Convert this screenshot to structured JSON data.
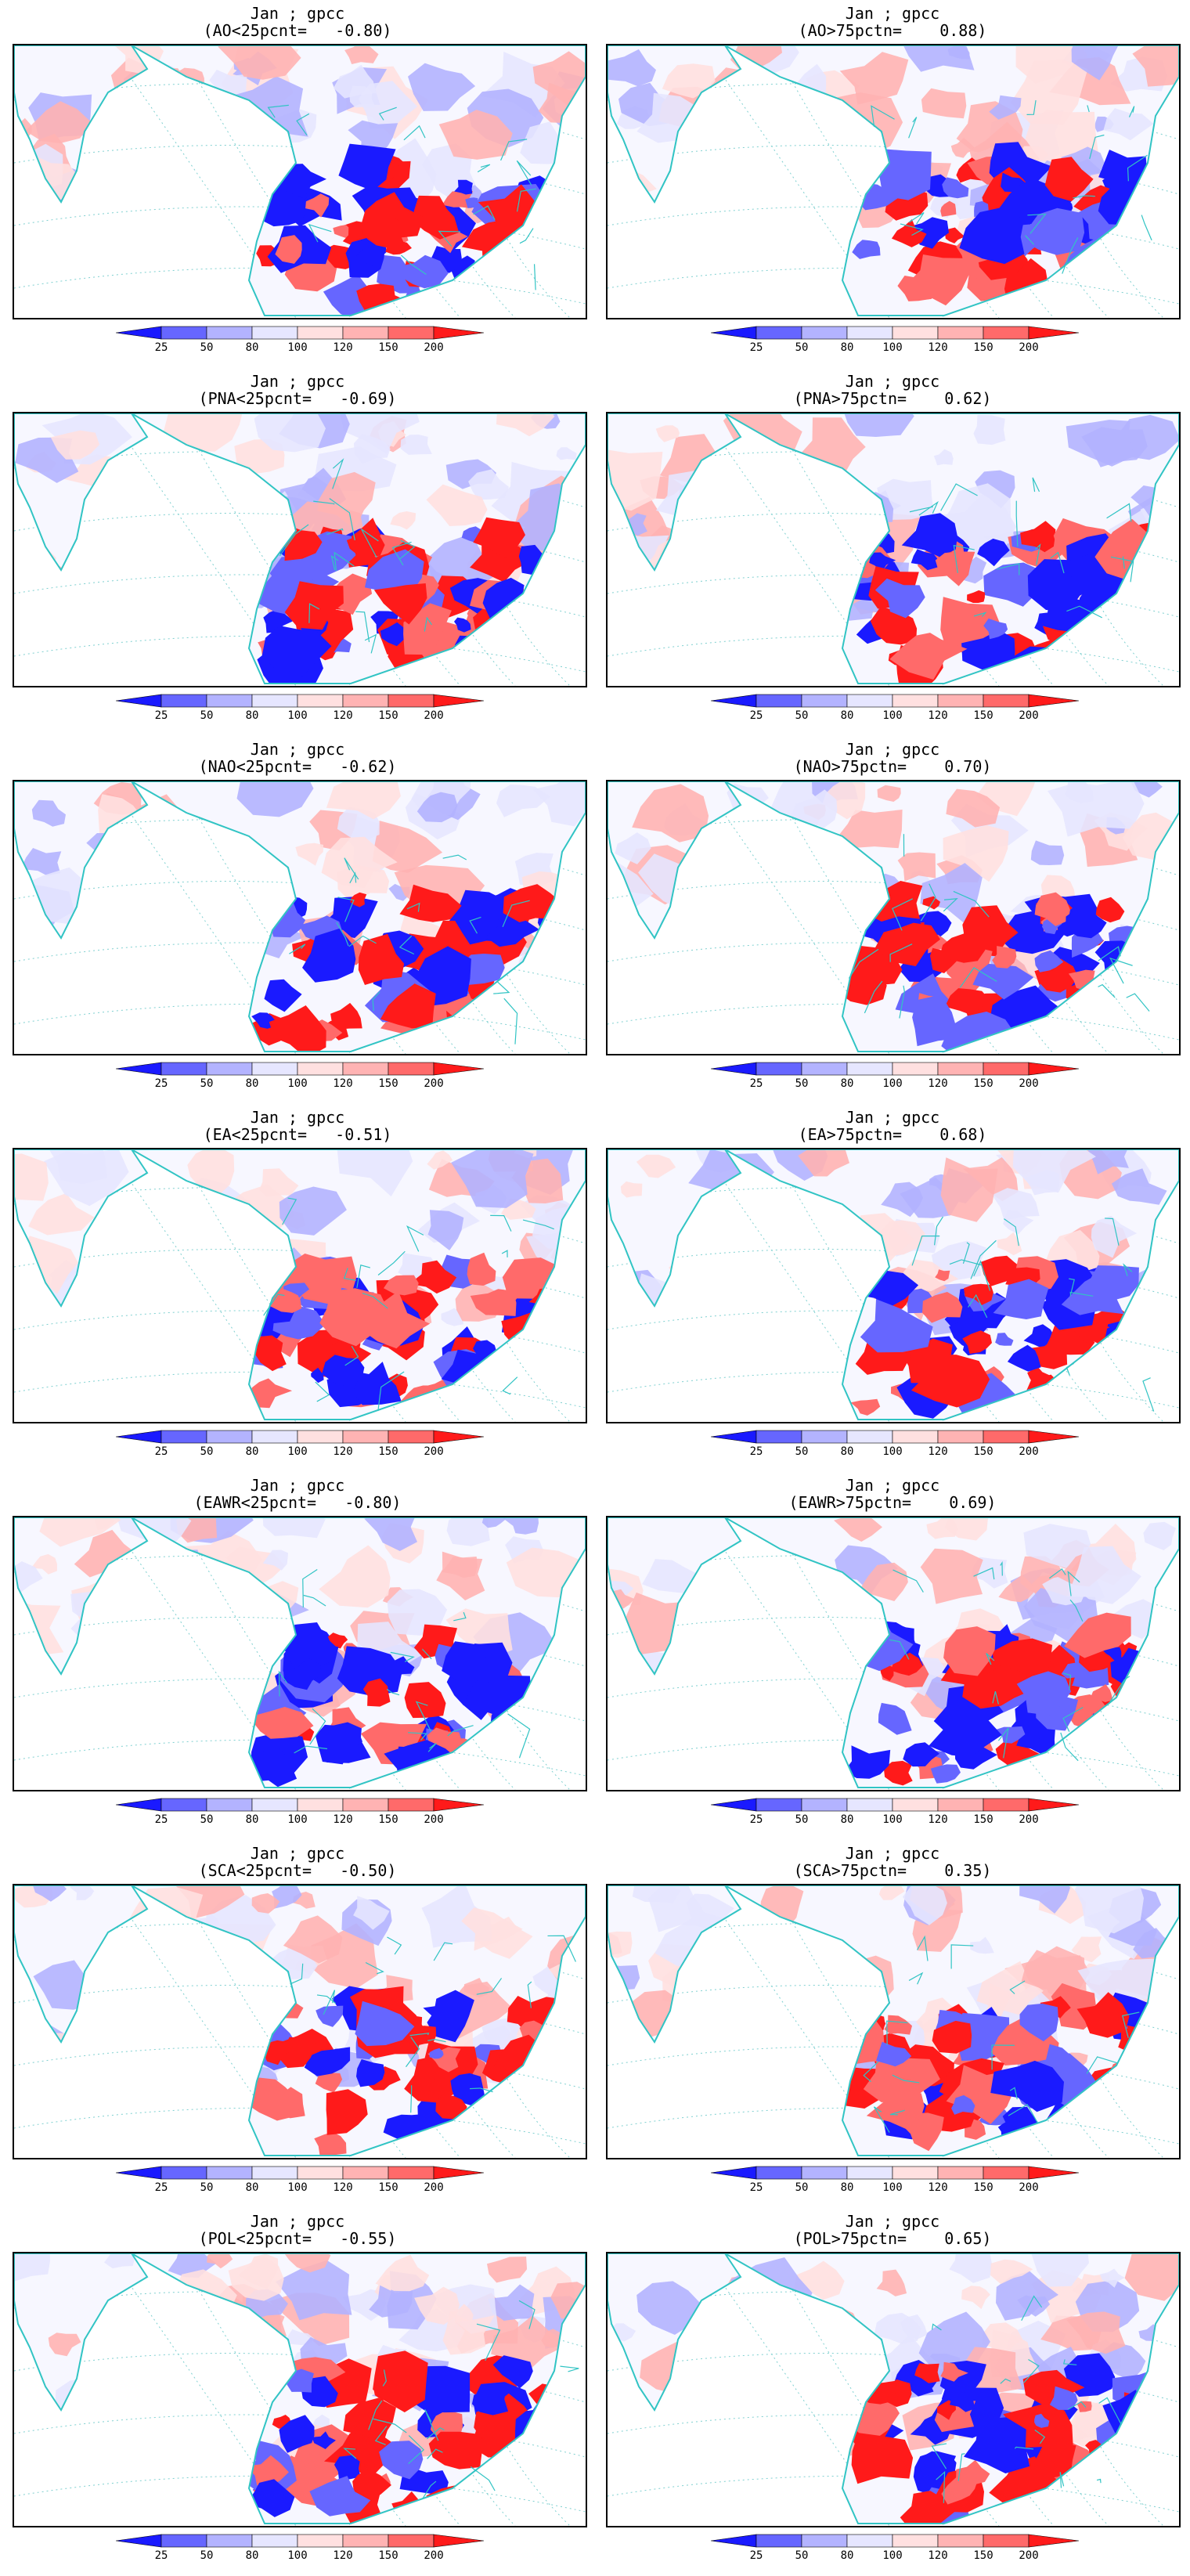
{
  "legend": {
    "colors": [
      "#1a1aff",
      "#6666ff",
      "#b3b3ff",
      "#e6e6ff",
      "#ffe0e0",
      "#ffb3b3",
      "#ff6a6a",
      "#ff1a1a"
    ],
    "levels": [
      "25",
      "50",
      "80",
      "100",
      "120",
      "150",
      "200"
    ]
  },
  "palette": {
    "coast": "#31c4c4",
    "grid": "#7fd0d0",
    "land_base": "#f7f7ff"
  },
  "panels": [
    {
      "title_line1": "Jan ; gpcc",
      "title_line2": "(AO<25pcnt=   -0.80)"
    },
    {
      "title_line1": "Jan ; gpcc",
      "title_line2": "(AO>75pctn=    0.88)"
    },
    {
      "title_line1": "Jan ; gpcc",
      "title_line2": "(PNA<25pcnt=   -0.69)"
    },
    {
      "title_line1": "Jan ; gpcc",
      "title_line2": "(PNA>75pctn=    0.62)"
    },
    {
      "title_line1": "Jan ; gpcc",
      "title_line2": "(NAO<25pcnt=   -0.62)"
    },
    {
      "title_line1": "Jan ; gpcc",
      "title_line2": "(NAO>75pctn=    0.70)"
    },
    {
      "title_line1": "Jan ; gpcc",
      "title_line2": "(EA<25pcnt=   -0.51)"
    },
    {
      "title_line1": "Jan ; gpcc",
      "title_line2": "(EA>75pctn=    0.68)"
    },
    {
      "title_line1": "Jan ; gpcc",
      "title_line2": "(EAWR<25pcnt=   -0.80)"
    },
    {
      "title_line1": "Jan ; gpcc",
      "title_line2": "(EAWR>75pctn=    0.69)"
    },
    {
      "title_line1": "Jan ; gpcc",
      "title_line2": "(SCA<25pcnt=   -0.50)"
    },
    {
      "title_line1": "Jan ; gpcc",
      "title_line2": "(SCA>75pctn=    0.35)"
    },
    {
      "title_line1": "Jan ; gpcc",
      "title_line2": "(POL<25pcnt=   -0.55)"
    },
    {
      "title_line1": "Jan ; gpcc",
      "title_line2": "(POL>75pctn=    0.65)"
    }
  ]
}
